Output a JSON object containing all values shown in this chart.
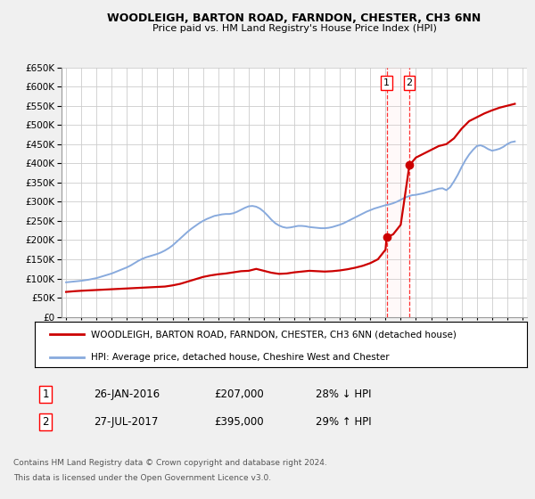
{
  "title": "WOODLEIGH, BARTON ROAD, FARNDON, CHESTER, CH3 6NN",
  "subtitle": "Price paid vs. HM Land Registry's House Price Index (HPI)",
  "ylim": [
    0,
    650000
  ],
  "xlim_start": 1994.7,
  "xlim_end": 2025.3,
  "transaction1": {
    "date": "26-JAN-2016",
    "price": 207000,
    "label": "1",
    "year": 2016.07
  },
  "transaction2": {
    "date": "27-JUL-2017",
    "price": 395000,
    "label": "2",
    "year": 2017.57
  },
  "legend_property": "WOODLEIGH, BARTON ROAD, FARNDON, CHESTER, CH3 6NN (detached house)",
  "legend_hpi": "HPI: Average price, detached house, Cheshire West and Chester",
  "footnote1": "Contains HM Land Registry data © Crown copyright and database right 2024.",
  "footnote2": "This data is licensed under the Open Government Licence v3.0.",
  "table_row1": [
    "1",
    "26-JAN-2016",
    "£207,000",
    "28% ↓ HPI"
  ],
  "table_row2": [
    "2",
    "27-JUL-2017",
    "£395,000",
    "29% ↑ HPI"
  ],
  "property_color": "#cc0000",
  "hpi_color": "#88aadd",
  "grid_color": "#cccccc",
  "bg_color": "#f0f0f0",
  "plot_bg_color": "#ffffff",
  "hpi_data_x": [
    1995.0,
    1995.25,
    1995.5,
    1995.75,
    1996.0,
    1996.25,
    1996.5,
    1996.75,
    1997.0,
    1997.25,
    1997.5,
    1997.75,
    1998.0,
    1998.25,
    1998.5,
    1998.75,
    1999.0,
    1999.25,
    1999.5,
    1999.75,
    2000.0,
    2000.25,
    2000.5,
    2000.75,
    2001.0,
    2001.25,
    2001.5,
    2001.75,
    2002.0,
    2002.25,
    2002.5,
    2002.75,
    2003.0,
    2003.25,
    2003.5,
    2003.75,
    2004.0,
    2004.25,
    2004.5,
    2004.75,
    2005.0,
    2005.25,
    2005.5,
    2005.75,
    2006.0,
    2006.25,
    2006.5,
    2006.75,
    2007.0,
    2007.25,
    2007.5,
    2007.75,
    2008.0,
    2008.25,
    2008.5,
    2008.75,
    2009.0,
    2009.25,
    2009.5,
    2009.75,
    2010.0,
    2010.25,
    2010.5,
    2010.75,
    2011.0,
    2011.25,
    2011.5,
    2011.75,
    2012.0,
    2012.25,
    2012.5,
    2012.75,
    2013.0,
    2013.25,
    2013.5,
    2013.75,
    2014.0,
    2014.25,
    2014.5,
    2014.75,
    2015.0,
    2015.25,
    2015.5,
    2015.75,
    2016.0,
    2016.25,
    2016.5,
    2016.75,
    2017.0,
    2017.25,
    2017.5,
    2017.75,
    2018.0,
    2018.25,
    2018.5,
    2018.75,
    2019.0,
    2019.25,
    2019.5,
    2019.75,
    2020.0,
    2020.25,
    2020.5,
    2020.75,
    2021.0,
    2021.25,
    2021.5,
    2021.75,
    2022.0,
    2022.25,
    2022.5,
    2022.75,
    2023.0,
    2023.25,
    2023.5,
    2023.75,
    2024.0,
    2024.25,
    2024.5
  ],
  "hpi_data_y": [
    90000,
    91000,
    92000,
    93000,
    94000,
    95500,
    97000,
    99000,
    101000,
    104000,
    107000,
    110000,
    113000,
    117000,
    121000,
    125000,
    129000,
    134000,
    140000,
    146000,
    151000,
    155000,
    158000,
    161000,
    164000,
    168000,
    173000,
    179000,
    186000,
    195000,
    204000,
    213000,
    222000,
    230000,
    237000,
    244000,
    250000,
    255000,
    259000,
    263000,
    265000,
    267000,
    268000,
    268000,
    270000,
    274000,
    279000,
    284000,
    288000,
    289000,
    287000,
    282000,
    274000,
    264000,
    253000,
    244000,
    238000,
    234000,
    232000,
    233000,
    235000,
    237000,
    237000,
    236000,
    234000,
    233000,
    232000,
    231000,
    231000,
    232000,
    234000,
    237000,
    240000,
    244000,
    249000,
    254000,
    259000,
    264000,
    269000,
    274000,
    278000,
    282000,
    285000,
    288000,
    291000,
    293000,
    296000,
    300000,
    305000,
    310000,
    314000,
    317000,
    318000,
    320000,
    322000,
    325000,
    328000,
    331000,
    334000,
    335000,
    330000,
    338000,
    353000,
    370000,
    390000,
    408000,
    423000,
    435000,
    445000,
    447000,
    443000,
    437000,
    433000,
    435000,
    438000,
    443000,
    450000,
    455000,
    457000
  ],
  "property_data_x": [
    1995.0,
    1995.3,
    1995.6,
    1996.0,
    1996.5,
    1997.0,
    1997.5,
    1998.0,
    1998.5,
    1999.0,
    1999.5,
    2000.0,
    2000.5,
    2001.0,
    2001.5,
    2002.0,
    2002.5,
    2003.0,
    2003.5,
    2004.0,
    2004.5,
    2005.0,
    2005.5,
    2006.0,
    2006.5,
    2007.0,
    2007.5,
    2008.0,
    2008.5,
    2009.0,
    2009.5,
    2010.0,
    2010.5,
    2011.0,
    2011.5,
    2012.0,
    2012.5,
    2013.0,
    2013.5,
    2014.0,
    2014.5,
    2015.0,
    2015.5,
    2016.0,
    2016.07,
    2016.5,
    2017.0,
    2017.57,
    2018.0,
    2018.5,
    2019.0,
    2019.5,
    2020.0,
    2020.5,
    2021.0,
    2021.5,
    2022.0,
    2022.5,
    2023.0,
    2023.5,
    2024.0,
    2024.5
  ],
  "property_data_y": [
    65000,
    66000,
    67000,
    68000,
    69000,
    70000,
    71000,
    72000,
    73000,
    74000,
    75000,
    76000,
    77000,
    78000,
    79000,
    82000,
    86000,
    92000,
    98000,
    104000,
    108000,
    111000,
    113000,
    116000,
    119000,
    120000,
    125000,
    120000,
    115000,
    112000,
    113000,
    116000,
    118000,
    120000,
    119000,
    118000,
    119000,
    121000,
    124000,
    128000,
    133000,
    140000,
    150000,
    175000,
    207000,
    215000,
    240000,
    395000,
    415000,
    425000,
    435000,
    445000,
    450000,
    465000,
    490000,
    510000,
    520000,
    530000,
    538000,
    545000,
    550000,
    555000
  ]
}
